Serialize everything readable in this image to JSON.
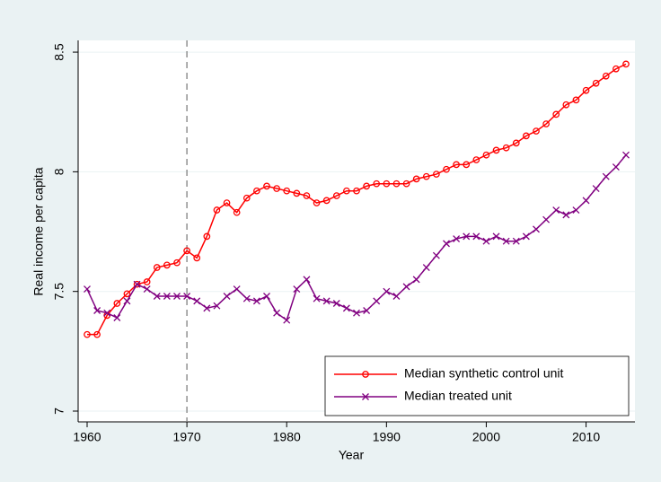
{
  "chart_data": {
    "type": "line",
    "xlabel": "Year",
    "ylabel": "Real income per capita",
    "x": [
      1960,
      1961,
      1962,
      1963,
      1964,
      1965,
      1966,
      1967,
      1968,
      1969,
      1970,
      1971,
      1972,
      1973,
      1974,
      1975,
      1976,
      1977,
      1978,
      1979,
      1980,
      1981,
      1982,
      1983,
      1984,
      1985,
      1986,
      1987,
      1988,
      1989,
      1990,
      1991,
      1992,
      1993,
      1994,
      1995,
      1996,
      1997,
      1998,
      1999,
      2000,
      2001,
      2002,
      2003,
      2004,
      2005,
      2006,
      2007,
      2008,
      2009,
      2010,
      2011,
      2012,
      2013,
      2014
    ],
    "series": [
      {
        "name": "Median synthetic control unit",
        "color": "#ff0000",
        "marker": "circle",
        "values": [
          7.32,
          7.32,
          7.4,
          7.45,
          7.49,
          7.53,
          7.54,
          7.6,
          7.61,
          7.62,
          7.67,
          7.64,
          7.73,
          7.84,
          7.87,
          7.83,
          7.89,
          7.92,
          7.94,
          7.93,
          7.92,
          7.91,
          7.9,
          7.87,
          7.88,
          7.9,
          7.92,
          7.92,
          7.94,
          7.95,
          7.95,
          7.95,
          7.95,
          7.97,
          7.98,
          7.99,
          8.01,
          8.03,
          8.03,
          8.05,
          8.07,
          8.09,
          8.1,
          8.12,
          8.15,
          8.17,
          8.2,
          8.24,
          8.28,
          8.3,
          8.34,
          8.37,
          8.4,
          8.43,
          8.45
        ]
      },
      {
        "name": "Median treated unit",
        "color": "#800080",
        "marker": "x",
        "values": [
          7.51,
          7.42,
          7.41,
          7.39,
          7.46,
          7.53,
          7.51,
          7.48,
          7.48,
          7.48,
          7.48,
          7.46,
          7.43,
          7.44,
          7.48,
          7.51,
          7.47,
          7.46,
          7.48,
          7.41,
          7.38,
          7.51,
          7.55,
          7.47,
          7.46,
          7.45,
          7.43,
          7.41,
          7.42,
          7.46,
          7.5,
          7.48,
          7.52,
          7.55,
          7.6,
          7.65,
          7.7,
          7.72,
          7.73,
          7.73,
          7.71,
          7.73,
          7.71,
          7.71,
          7.73,
          7.76,
          7.8,
          7.84,
          7.82,
          7.84,
          7.88,
          7.93,
          7.98,
          8.02,
          8.07
        ]
      }
    ],
    "xlim": [
      1959.1,
      2014.9
    ],
    "xticks": [
      1960,
      1970,
      1980,
      1990,
      2000,
      2010
    ],
    "ylim": [
      6.955,
      8.549
    ],
    "yticks": [
      7,
      7.5,
      8,
      8.5
    ],
    "xline": 1970,
    "grid": true,
    "legend": "lower right"
  }
}
